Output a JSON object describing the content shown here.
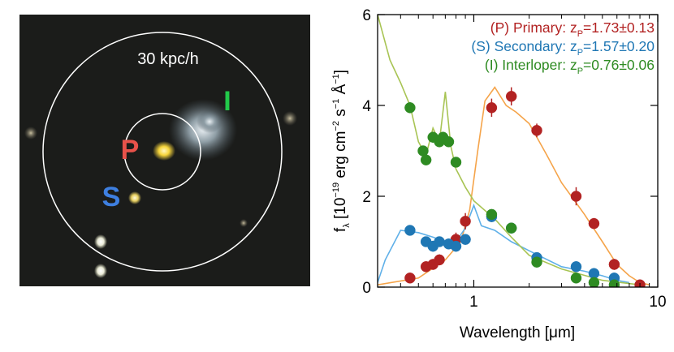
{
  "image_panel": {
    "scale_label": "30 kpc/h",
    "labels": [
      {
        "text": "P",
        "color": "#e8524a"
      },
      {
        "text": "S",
        "color": "#3e7fe0"
      },
      {
        "text": "I",
        "color": "#22c94a"
      }
    ]
  },
  "chart_data": {
    "type": "scatter",
    "xscale": "log",
    "xlim": [
      0.3,
      10
    ],
    "ylim": [
      0,
      6
    ],
    "xticks": [
      1,
      10
    ],
    "xtick_labels": [
      "1",
      "10"
    ],
    "yticks": [
      0,
      2,
      4,
      6
    ],
    "ytick_labels": [
      "0",
      "2",
      "4",
      "6"
    ],
    "xlabel": "Wavelength [μm]",
    "ylabel": {
      "prefix": "f",
      "prefix_sub": "λ",
      "body": " [10",
      "exp1": "−19",
      "unit1": " erg cm",
      "exp2": "−2",
      "unit2": " s",
      "exp3": "−1",
      "unit3": " Å",
      "exp4": "−1",
      "close": "]"
    },
    "legend": [
      {
        "label": "(P) Primary: z",
        "sub": "P",
        "value": "=1.73±0.13",
        "color": "#b22222"
      },
      {
        "label": "(S) Secondary: z",
        "sub": "P",
        "value": "=1.57±0.20",
        "color": "#1f77b4"
      },
      {
        "label": "(I) Interloper: z",
        "sub": "P",
        "value": "=0.76±0.06",
        "color": "#2e8b22"
      }
    ],
    "series": [
      {
        "name": "Primary",
        "color": "#b22222",
        "model_color": "#f5a44a",
        "x": [
          0.45,
          0.55,
          0.6,
          0.65,
          0.8,
          0.9,
          1.25,
          1.6,
          2.2,
          3.6,
          4.5,
          5.8,
          8.0
        ],
        "y": [
          0.2,
          0.45,
          0.5,
          0.6,
          1.05,
          1.45,
          3.95,
          4.2,
          3.45,
          2.0,
          1.4,
          0.5,
          0.05
        ],
        "yerr": [
          0.08,
          0.1,
          0.12,
          0.12,
          0.15,
          0.18,
          0.2,
          0.2,
          0.15,
          0.2,
          0.12,
          0.12,
          0.06
        ],
        "model_x": [
          0.3,
          0.5,
          0.7,
          0.85,
          0.95,
          1.05,
          1.15,
          1.3,
          1.5,
          1.7,
          2.0,
          2.5,
          3.0,
          4.0,
          5.0,
          6.0,
          7.0,
          8.0,
          9.0
        ],
        "model_y": [
          0.05,
          0.2,
          0.6,
          1.0,
          1.7,
          3.0,
          4.1,
          4.4,
          4.0,
          3.85,
          3.6,
          2.9,
          2.3,
          1.6,
          1.0,
          0.5,
          0.25,
          0.1,
          0.05
        ]
      },
      {
        "name": "Secondary",
        "color": "#1f77b4",
        "model_color": "#5fb0e8",
        "x": [
          0.45,
          0.55,
          0.6,
          0.65,
          0.73,
          0.8,
          0.9,
          1.25,
          1.6,
          2.2,
          3.6,
          4.5,
          5.8
        ],
        "y": [
          1.25,
          1.0,
          0.9,
          1.0,
          0.95,
          0.9,
          1.05,
          1.55,
          1.3,
          0.65,
          0.45,
          0.3,
          0.2
        ],
        "yerr": [
          0.06,
          0.08,
          0.12,
          0.1,
          0.1,
          0.12,
          0.1,
          0.1,
          0.08,
          0.06,
          0.06,
          0.05,
          0.05
        ],
        "model_x": [
          0.3,
          0.33,
          0.4,
          0.5,
          0.6,
          0.7,
          0.8,
          0.9,
          1.0,
          1.1,
          1.3,
          1.6,
          2.0,
          3.0,
          4.0,
          5.0,
          6.0,
          7.0
        ],
        "model_y": [
          0.1,
          0.6,
          1.25,
          1.2,
          1.1,
          1.0,
          1.0,
          1.3,
          1.8,
          1.35,
          1.25,
          1.0,
          0.8,
          0.45,
          0.35,
          0.25,
          0.15,
          0.1
        ]
      },
      {
        "name": "Interloper",
        "color": "#2e8b22",
        "model_color": "#a8c454",
        "x": [
          0.45,
          0.53,
          0.55,
          0.6,
          0.65,
          0.68,
          0.73,
          0.8,
          1.25,
          1.6,
          2.2,
          3.6,
          4.5,
          5.8
        ],
        "y": [
          3.95,
          3.0,
          2.8,
          3.3,
          3.2,
          3.3,
          3.2,
          2.75,
          1.6,
          1.3,
          0.55,
          0.2,
          0.1,
          0.05
        ],
        "yerr": [
          0.12,
          0.1,
          0.1,
          0.12,
          0.12,
          0.1,
          0.1,
          0.1,
          0.08,
          0.06,
          0.05,
          0.04,
          0.04,
          0.03
        ],
        "model_x": [
          0.3,
          0.35,
          0.4,
          0.45,
          0.5,
          0.55,
          0.6,
          0.65,
          0.7,
          0.75,
          0.8,
          0.9,
          1.0,
          1.3,
          1.6,
          2.0,
          3.0,
          5.0,
          8.0
        ],
        "model_y": [
          6.0,
          5.0,
          4.5,
          4.0,
          3.2,
          2.9,
          3.5,
          3.2,
          4.3,
          3.1,
          2.6,
          2.2,
          1.9,
          1.5,
          1.1,
          0.7,
          0.4,
          0.15,
          0.05
        ]
      }
    ]
  }
}
